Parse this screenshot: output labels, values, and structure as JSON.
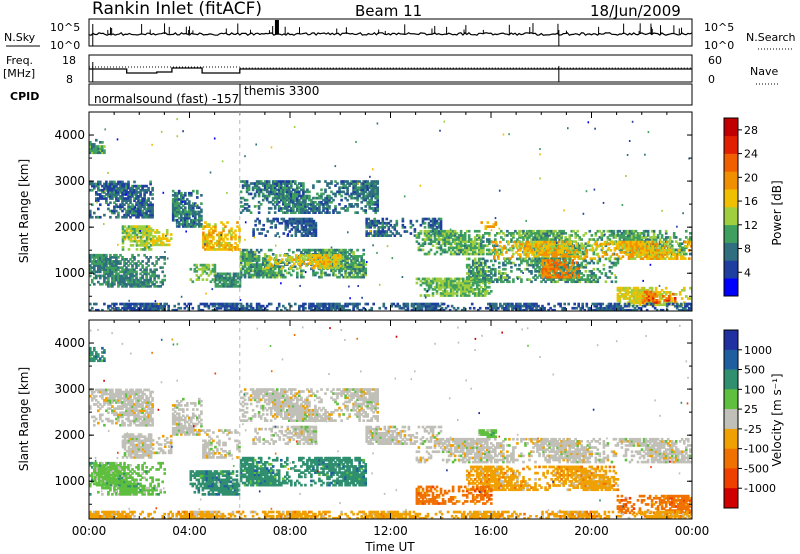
{
  "header": {
    "station": "Rankin Inlet (fitACF)",
    "beam": "Beam 11",
    "date": "18/Jun/2009"
  },
  "summary": {
    "nsky_label": "N.Sky",
    "nsky_top": "10^5",
    "nsky_bottom": "10^0",
    "nsearch_label": "N.Search",
    "nsearch_top": "10^5",
    "nsearch_bottom": "10^0",
    "freq_label": "Freq.",
    "freq_unit": "[MHz]",
    "freq_top": "18",
    "freq_bottom": "8",
    "nave_label": "Nave",
    "nave_top": "60",
    "nave_bottom": "0",
    "cpid_label": "CPID",
    "cpid_first": "normalsound (fast) -157",
    "cpid_second": "themis 3300"
  },
  "colors": {
    "power": [
      "#0000ff",
      "#1f3fa0",
      "#2f6f7f",
      "#3f9f5f",
      "#9fcf3f",
      "#f0c000",
      "#f09000",
      "#f06000",
      "#e02000",
      "#c00000"
    ],
    "velocity": [
      "#2030a0",
      "#1f5fa0",
      "#2f8f6f",
      "#5fbf3f",
      "#c0c0b8",
      "#f0a000",
      "#f07000",
      "#f04000",
      "#d00000"
    ]
  },
  "chart_data": [
    {
      "type": "heatmap",
      "panel": "power",
      "ylabel": "Slant Range [km]",
      "ylim": [
        180,
        4500
      ],
      "yticks": [
        1000,
        2000,
        3000,
        4000
      ],
      "xlim": [
        0,
        24
      ],
      "xticks": [
        "00:00",
        "04:00",
        "08:00",
        "12:00",
        "16:00",
        "20:00",
        "00:00"
      ],
      "colorbar": {
        "label": "Power [dB]",
        "ticks": [
          "4",
          "8",
          "12",
          "16",
          "20",
          "24",
          "28"
        ],
        "range": [
          0,
          30
        ]
      },
      "regions": [
        {
          "t": [
            0.0,
            0.6
          ],
          "r": [
            3600,
            3900
          ],
          "v": 10
        },
        {
          "t": [
            0.0,
            2.5
          ],
          "r": [
            2200,
            3000
          ],
          "v": 7
        },
        {
          "t": [
            0.0,
            3.0
          ],
          "r": [
            700,
            1400
          ],
          "v": 9
        },
        {
          "t": [
            1.3,
            2.5
          ],
          "r": [
            1500,
            2000
          ],
          "v": 13
        },
        {
          "t": [
            2.5,
            3.3
          ],
          "r": [
            1600,
            2000
          ],
          "v": 15
        },
        {
          "t": [
            3.3,
            4.5
          ],
          "r": [
            2000,
            2800
          ],
          "v": 8
        },
        {
          "t": [
            4.5,
            6.0
          ],
          "r": [
            1500,
            2100
          ],
          "v": 17
        },
        {
          "t": [
            4.0,
            5.0
          ],
          "r": [
            800,
            1200
          ],
          "v": 12
        },
        {
          "t": [
            5.0,
            6.0
          ],
          "r": [
            700,
            1000
          ],
          "v": 9
        },
        {
          "t": [
            6.0,
            11.5
          ],
          "r": [
            2300,
            3000
          ],
          "v": 8
        },
        {
          "t": [
            6.5,
            9.0
          ],
          "r": [
            1800,
            2200
          ],
          "v": 6
        },
        {
          "t": [
            6.0,
            11.0
          ],
          "r": [
            900,
            1500
          ],
          "v": 10
        },
        {
          "t": [
            7.0,
            10.0
          ],
          "r": [
            1100,
            1400
          ],
          "v": 16
        },
        {
          "t": [
            11.0,
            14.0
          ],
          "r": [
            1800,
            2200
          ],
          "v": 7
        },
        {
          "t": [
            13.0,
            24.0
          ],
          "r": [
            1400,
            1900
          ],
          "v": 11
        },
        {
          "t": [
            16.0,
            24.0
          ],
          "r": [
            1300,
            1700
          ],
          "v": 17
        },
        {
          "t": [
            15.0,
            21.0
          ],
          "r": [
            800,
            1300
          ],
          "v": 10
        },
        {
          "t": [
            18.0,
            19.5
          ],
          "r": [
            900,
            1300
          ],
          "v": 21
        },
        {
          "t": [
            13.0,
            16.0
          ],
          "r": [
            500,
            900
          ],
          "v": 12
        },
        {
          "t": [
            21.0,
            24.0
          ],
          "r": [
            300,
            700
          ],
          "v": 15
        },
        {
          "t": [
            22.0,
            23.5
          ],
          "r": [
            350,
            600
          ],
          "v": 22
        },
        {
          "t": [
            15.5,
            16.2
          ],
          "r": [
            1950,
            2100
          ],
          "v": 18
        },
        {
          "t": [
            0.0,
            24.0
          ],
          "r": [
            180,
            320
          ],
          "v": 6
        }
      ]
    },
    {
      "type": "heatmap",
      "panel": "velocity",
      "ylabel": "Slant Range [km]",
      "xlabel": "Time UT",
      "ylim": [
        180,
        4500
      ],
      "yticks": [
        1000,
        2000,
        3000,
        4000
      ],
      "xlim": [
        0,
        24
      ],
      "xticks": [
        "00:00",
        "04:00",
        "08:00",
        "12:00",
        "16:00",
        "20:00",
        "00:00"
      ],
      "colorbar": {
        "label": "Velocity [m s⁻¹]",
        "ticks": [
          "1000",
          "500",
          "100",
          "25",
          "-25",
          "-100",
          "-500",
          "-1000"
        ],
        "range": [
          -1000,
          1000
        ]
      },
      "regions": [
        {
          "t": [
            0.0,
            0.6
          ],
          "r": [
            3600,
            3900
          ],
          "v": 2
        },
        {
          "t": [
            0.0,
            2.5
          ],
          "r": [
            2200,
            3000
          ],
          "v": 4
        },
        {
          "t": [
            0.0,
            3.0
          ],
          "r": [
            700,
            1400
          ],
          "v": 3
        },
        {
          "t": [
            0.2,
            1.2
          ],
          "r": [
            900,
            1300
          ],
          "v": 3
        },
        {
          "t": [
            1.3,
            2.5
          ],
          "r": [
            1500,
            2000
          ],
          "v": 4
        },
        {
          "t": [
            2.5,
            3.3
          ],
          "r": [
            1600,
            2000
          ],
          "v": 4
        },
        {
          "t": [
            3.3,
            4.5
          ],
          "r": [
            2000,
            2800
          ],
          "v": 4
        },
        {
          "t": [
            4.5,
            6.0
          ],
          "r": [
            1500,
            2100
          ],
          "v": 4
        },
        {
          "t": [
            4.0,
            6.0
          ],
          "r": [
            700,
            1200
          ],
          "v": 2
        },
        {
          "t": [
            6.0,
            11.5
          ],
          "r": [
            2300,
            3000
          ],
          "v": 4
        },
        {
          "t": [
            6.5,
            9.0
          ],
          "r": [
            1800,
            2200
          ],
          "v": 4
        },
        {
          "t": [
            6.0,
            11.0
          ],
          "r": [
            900,
            1500
          ],
          "v": 2
        },
        {
          "t": [
            11.0,
            14.0
          ],
          "r": [
            1800,
            2200
          ],
          "v": 4
        },
        {
          "t": [
            13.0,
            24.0
          ],
          "r": [
            1400,
            1900
          ],
          "v": 4
        },
        {
          "t": [
            15.0,
            21.0
          ],
          "r": [
            800,
            1300
          ],
          "v": 5
        },
        {
          "t": [
            13.0,
            16.0
          ],
          "r": [
            500,
            900
          ],
          "v": 6
        },
        {
          "t": [
            21.0,
            24.0
          ],
          "r": [
            300,
            700
          ],
          "v": 6
        },
        {
          "t": [
            15.5,
            16.2
          ],
          "r": [
            1950,
            2100
          ],
          "v": 3
        },
        {
          "t": [
            0.0,
            24.0
          ],
          "r": [
            180,
            320
          ],
          "v": 5
        }
      ]
    }
  ]
}
